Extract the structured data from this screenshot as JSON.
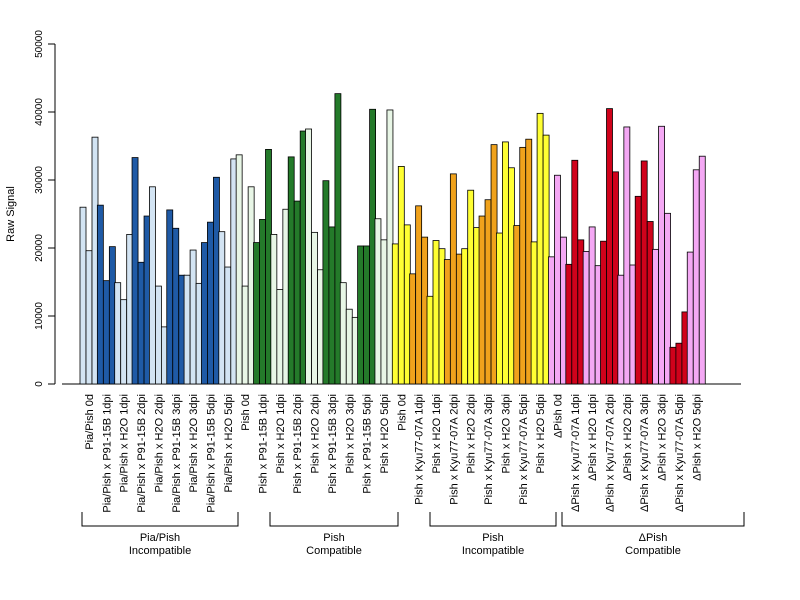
{
  "chart_data": {
    "type": "bar",
    "ylabel": "Raw Signal",
    "ylim": [
      0,
      50000
    ],
    "yticks": [
      0,
      10000,
      20000,
      30000,
      40000,
      50000
    ],
    "grid": false,
    "legend": "none",
    "categories": [
      "Pia/Pish 0d",
      "Pia/Pish x P91-15B 1dpi",
      "Pia/Pish x H2O 1dpi",
      "Pia/Pish x P91-15B 2dpi",
      "Pia/Pish x H2O 2dpi",
      "Pia/Pish x P91-15B 3dpi",
      "Pia/Pish x H2O 3dpi",
      "Pia/Pish x P91-15B 5dpi",
      "Pia/Pish x H2O 5dpi",
      "Pish 0d",
      "Pish x P91-15B 1dpi",
      "Pish x H2O 1dpi",
      "Pish x P91-15B 2dpi",
      "Pish x H2O 2dpi",
      "Pish x P91-15B 3dpi",
      "Pish x H2O 3dpi",
      "Pish x P91-15B 5dpi",
      "Pish x H2O 5dpi",
      "Pish 0d",
      "Pish x Kyu77-07A 1dpi",
      "Pish x H2O 1dpi",
      "Pish x Kyu77-07A 2dpi",
      "Pish x H2O 2dpi",
      "Pish x Kyu77-07A 3dpi",
      "Pish x H2O 3dpi",
      "Pish x Kyu77-07A 5dpi",
      "Pish x H2O 5dpi",
      "ΔPish 0d",
      "ΔPish x Kyu77-07A 1dpi",
      "ΔPish x H2O 1dpi",
      "ΔPish x Kyu77-07A 2dpi",
      "ΔPish x H2O 2dpi",
      "ΔPish x Kyu77-07A 3dpi",
      "ΔPish x H2O 3dpi",
      "ΔPish x Kyu77-07A 5dpi",
      "ΔPish x H2O 5dpi"
    ],
    "colors": {
      "group1_treated": "#1f5aa6",
      "group1_light": "#d3e4f3",
      "group2_treated": "#247a2a",
      "group2_light": "#e8f6e6",
      "group3_treated": "#f0a21c",
      "group3_light": "#ffff33",
      "group4_treated": "#d0021b",
      "group4_light": "#f4a8f4"
    },
    "bar_colors": [
      "#d3e4f3",
      "#1f5aa6",
      "#d3e4f3",
      "#1f5aa6",
      "#d3e4f3",
      "#1f5aa6",
      "#d3e4f3",
      "#1f5aa6",
      "#d3e4f3",
      "#e8f6e6",
      "#247a2a",
      "#e8f6e6",
      "#247a2a",
      "#e8f6e6",
      "#247a2a",
      "#e8f6e6",
      "#247a2a",
      "#e8f6e6",
      "#ffff33",
      "#f0a21c",
      "#ffff33",
      "#f0a21c",
      "#ffff33",
      "#f0a21c",
      "#ffff33",
      "#f0a21c",
      "#ffff33",
      "#f4a8f4",
      "#d0021b",
      "#f4a8f4",
      "#d0021b",
      "#f4a8f4",
      "#d0021b",
      "#f4a8f4",
      "#d0021b",
      "#f4a8f4"
    ],
    "replicates": [
      [
        26000,
        19600,
        36300
      ],
      [
        26300,
        15200,
        20200
      ],
      [
        14900,
        12400,
        22000
      ],
      [
        33300,
        17900,
        24700
      ],
      [
        29000,
        14400,
        8400
      ],
      [
        25600,
        22900,
        16000
      ],
      [
        16000,
        19700,
        14800
      ],
      [
        20800,
        23800,
        30400
      ],
      [
        22400,
        17200,
        33100
      ],
      [
        33700,
        14400,
        29000
      ],
      [
        20800,
        24200,
        34500
      ],
      [
        22000,
        13900,
        25700
      ],
      [
        33400,
        26900,
        37200
      ],
      [
        37500,
        22300,
        16800
      ],
      [
        29900,
        23100,
        42700
      ],
      [
        14900,
        11000,
        9800
      ],
      [
        20300,
        20300,
        40400
      ],
      [
        24300,
        21200,
        40300
      ],
      [
        20600,
        32000,
        23400
      ],
      [
        16200,
        26200,
        21600
      ],
      [
        12900,
        21100,
        19900
      ],
      [
        18300,
        30900,
        19100
      ],
      [
        19900,
        28500,
        23000
      ],
      [
        24700,
        27100,
        35200
      ],
      [
        22200,
        35600,
        31800
      ],
      [
        23300,
        34800,
        36000
      ],
      [
        20900,
        39800,
        36600
      ],
      [
        18700,
        30700,
        21600
      ],
      [
        17600,
        32900,
        21200
      ],
      [
        19500,
        23100,
        17400
      ],
      [
        21000,
        40500,
        31200
      ],
      [
        16000,
        37800,
        17500
      ],
      [
        27600,
        32800,
        23900
      ],
      [
        19800,
        37900,
        25100
      ],
      [
        5400,
        6000,
        10600
      ],
      [
        19400,
        31500,
        33500
      ]
    ],
    "groups": [
      {
        "line1": "Pia/Pish",
        "line2": "Incompatible"
      },
      {
        "line1": "Pish",
        "line2": "Compatible"
      },
      {
        "line1": "Pish",
        "line2": "Incompatible"
      },
      {
        "line1": "ΔPish",
        "line2": "Compatible"
      }
    ]
  }
}
